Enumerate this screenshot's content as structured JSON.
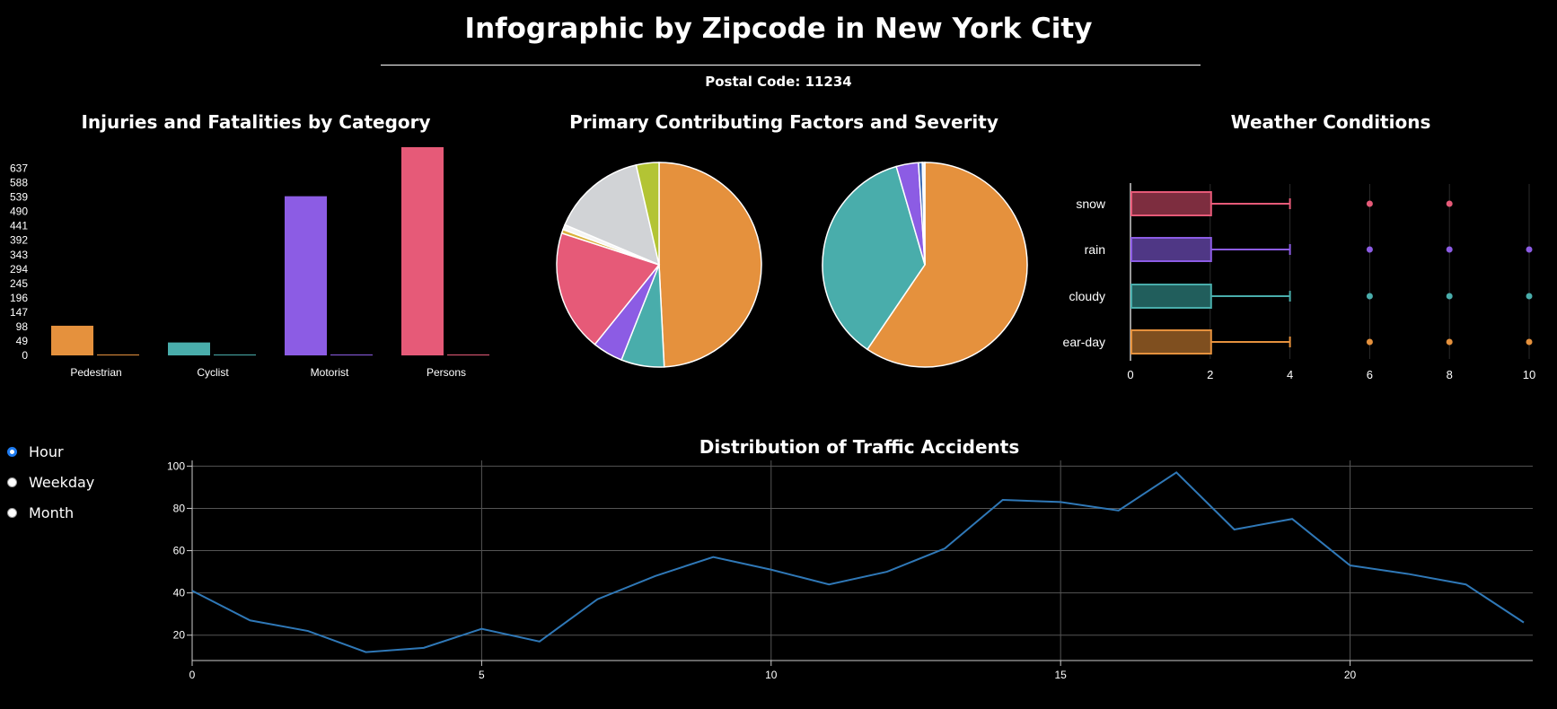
{
  "header": {
    "title": "Infographic by Zipcode in New York City",
    "postal_code": "Postal Code: 11234"
  },
  "controls": {
    "options": [
      {
        "label": "Hour",
        "checked": true
      },
      {
        "label": "Weekday",
        "checked": false
      },
      {
        "label": "Month",
        "checked": false
      }
    ]
  },
  "chart_data": [
    {
      "type": "bar",
      "title": "Injuries and Fatalities by Category",
      "categories": [
        "Pedestrian",
        "Cyclist",
        "Motorist",
        "Persons"
      ],
      "series": [
        {
          "values": [
            101,
            44,
            542,
            709
          ]
        },
        {
          "values": [
            1,
            0,
            2,
            3
          ]
        }
      ],
      "colors": [
        "#e5913d",
        "#49adab",
        "#8c5ce4",
        "#e65a78"
      ],
      "y_ticks": [
        0,
        49,
        98,
        147,
        196,
        245,
        294,
        343,
        392,
        441,
        490,
        539,
        588,
        637
      ],
      "ylim": [
        0,
        709
      ]
    },
    {
      "type": "pie",
      "title": "Primary Contributing Factors and Severity",
      "pies": [
        {
          "slices": [
            {
              "value": 49.2,
              "color": "#e5913d"
            },
            {
              "value": 6.8,
              "color": "#49adab"
            },
            {
              "value": 4.8,
              "color": "#8c5ce4"
            },
            {
              "value": 19.2,
              "color": "#e65a78"
            },
            {
              "value": 0.6,
              "color": "#d9b13a"
            },
            {
              "value": 0.8,
              "color": "#f5f5f5"
            },
            {
              "value": 15.0,
              "color": "#d1d3d6"
            },
            {
              "value": 3.6,
              "color": "#b3c434"
            }
          ]
        },
        {
          "slices": [
            {
              "value": 59.5,
              "color": "#e5913d"
            },
            {
              "value": 36.0,
              "color": "#49adab"
            },
            {
              "value": 3.5,
              "color": "#8c5ce4"
            },
            {
              "value": 0.6,
              "color": "#3565b0"
            },
            {
              "value": 0.4,
              "color": "#f5f5f5"
            }
          ]
        }
      ]
    },
    {
      "type": "box",
      "title": "Weather Conditions",
      "categories": [
        "snow",
        "rain",
        "cloudy",
        "ear-day"
      ],
      "colors": [
        "#e65a78",
        "#8c5ce4",
        "#49adab",
        "#e5913d"
      ],
      "box_fills": [
        "#7d2d3f",
        "#4f3785",
        "#215e5c",
        "#7f4f1f"
      ],
      "boxes": [
        {
          "q1": 0,
          "q3": 2,
          "whisker_low": 0,
          "whisker_high": 4,
          "outliers": [
            6,
            8
          ]
        },
        {
          "q1": 0,
          "q3": 2,
          "whisker_low": 0,
          "whisker_high": 4,
          "outliers": [
            6,
            8,
            10
          ]
        },
        {
          "q1": 0,
          "q3": 2,
          "whisker_low": 0,
          "whisker_high": 4,
          "outliers": [
            6,
            8,
            10
          ]
        },
        {
          "q1": 0,
          "q3": 2,
          "whisker_low": 0,
          "whisker_high": 4,
          "outliers": [
            6,
            8,
            10
          ]
        }
      ],
      "x_ticks": [
        0,
        2,
        4,
        6,
        8,
        10
      ],
      "xlim": [
        0,
        10
      ]
    },
    {
      "type": "line",
      "title": "Distribution of Traffic Accidents",
      "x": [
        0,
        1,
        2,
        3,
        4,
        5,
        6,
        7,
        8,
        9,
        10,
        11,
        12,
        13,
        14,
        15,
        16,
        17,
        18,
        19,
        20,
        21,
        22,
        23
      ],
      "values": [
        41,
        27,
        22,
        12,
        14,
        23,
        17,
        37,
        48,
        57,
        51,
        44,
        50,
        61,
        84,
        83,
        79,
        97,
        70,
        75,
        53,
        49,
        44,
        26
      ],
      "x_ticks": [
        0,
        5,
        10,
        15,
        20
      ],
      "y_ticks": [
        20,
        40,
        60,
        80,
        100
      ],
      "xlim": [
        0,
        23
      ],
      "ylim": [
        8,
        101
      ],
      "grid": true,
      "color": "#2f78b7"
    }
  ]
}
